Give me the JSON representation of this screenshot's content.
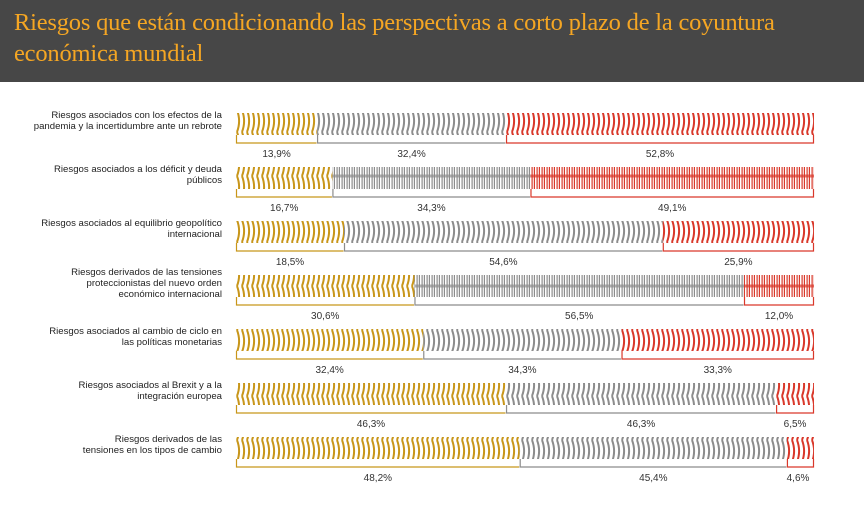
{
  "header": {
    "title": "Riesgos que están condicionando las perspectivas a corto plazo de la coyuntura económica mundial"
  },
  "colors": {
    "header_bg": "#474747",
    "title": "#f5a623",
    "series_gold": "#c8961a",
    "series_gray": "#8c8c8c",
    "series_red": "#d9382a"
  },
  "chart_data": {
    "type": "bar",
    "orientation": "horizontal",
    "stacked": true,
    "title": "Riesgos que están condicionando las perspectivas a corto plazo de la coyuntura económica mundial",
    "xlabel": "",
    "ylabel": "",
    "xlim": [
      0,
      100
    ],
    "unit": "%",
    "grid": false,
    "legend": "none",
    "categories": [
      "Riesgos asociados con los efectos de la pandemia y la incertidumbre ante un rebrote",
      "Riesgos asociados a los déficit y deuda públicos",
      "Riesgos asociados al equilibrio geopolítico internacional",
      "Riesgos derivados de las tensiones proteccionistas del nuevo orden económico internacional",
      "Riesgos asociados al cambio de ciclo en las políticas monetarias",
      "Riesgos asociados al Brexit y a la integración europea",
      "Riesgos derivados de las tensiones en los tipos de cambio"
    ],
    "category_lines": [
      [
        "Riesgos asociados con los efectos de la",
        "pandemia y la incertidumbre ante un rebrote"
      ],
      [
        "Riesgos asociados a los déficit y deuda",
        "públicos"
      ],
      [
        "Riesgos asociados al equilibrio geopolítico",
        "internacional"
      ],
      [
        "Riesgos derivados de las tensiones",
        "proteccionistas del nuevo orden",
        "económico internacional"
      ],
      [
        "Riesgos asociados al cambio de ciclo en",
        "las políticas monetarias"
      ],
      [
        "Riesgos asociados al Brexit y a la",
        "integración europea"
      ],
      [
        "Riesgos derivados de las",
        "tensiones en los tipos de cambio"
      ]
    ],
    "series": [
      {
        "name": "segment-1",
        "color": "#c8961a",
        "values": [
          13.9,
          16.7,
          18.5,
          30.6,
          32.4,
          46.3,
          48.2
        ],
        "labels": [
          "13,9%",
          "16,7%",
          "18,5%",
          "30,6%",
          "32,4%",
          "46,3%",
          "48,2%"
        ]
      },
      {
        "name": "segment-2",
        "color": "#8c8c8c",
        "values": [
          32.4,
          34.3,
          54.6,
          56.5,
          34.3,
          46.3,
          45.4
        ],
        "labels": [
          "32,4%",
          "34,3%",
          "54,6%",
          "56,5%",
          "34,3%",
          "46,3%",
          "45,4%"
        ]
      },
      {
        "name": "segment-3",
        "color": "#d9382a",
        "values": [
          52.8,
          49.1,
          25.9,
          12.0,
          33.3,
          6.5,
          4.6
        ],
        "labels": [
          "52,8%",
          "49,1%",
          "25,9%",
          "12,0%",
          "33,3%",
          "6,5%",
          "4,6%"
        ]
      }
    ],
    "stripe_style": [
      "curved",
      "straight",
      "curved",
      "straight",
      "curved",
      "curved",
      "curved"
    ]
  }
}
